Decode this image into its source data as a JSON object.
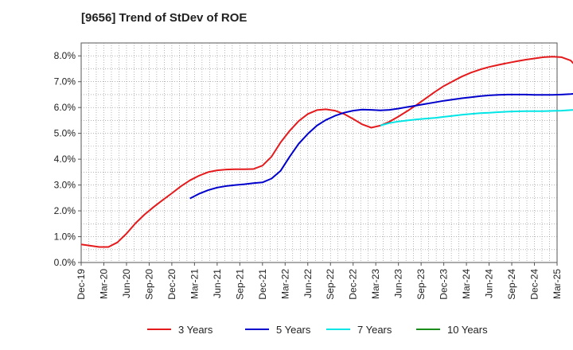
{
  "title": "[9656]  Trend of StDev of ROE",
  "chart_data": {
    "type": "line",
    "title": "[9656]  Trend of StDev of ROE",
    "xlabel": "",
    "ylabel": "",
    "x_ticks": [
      "Dec-19",
      "Mar-20",
      "Jun-20",
      "Sep-20",
      "Dec-20",
      "Mar-21",
      "Jun-21",
      "Sep-21",
      "Dec-21",
      "Mar-22",
      "Jun-22",
      "Sep-22",
      "Dec-22",
      "Mar-23",
      "Jun-23",
      "Sep-23",
      "Dec-23",
      "Mar-24",
      "Jun-24",
      "Sep-24",
      "Dec-24",
      "Mar-25"
    ],
    "y_ticks": [
      "0.0%",
      "1.0%",
      "2.0%",
      "3.0%",
      "4.0%",
      "5.0%",
      "6.0%",
      "7.0%",
      "8.0%"
    ],
    "ylim": [
      0,
      8.5
    ],
    "grid": true,
    "legend_position": "bottom",
    "series": [
      {
        "name": "3 Years",
        "color": "#e41a1c",
        "values": [
          0.7,
          0.65,
          0.6,
          0.6,
          0.78,
          1.12,
          1.52,
          1.86,
          2.15,
          2.42,
          2.68,
          2.95,
          3.18,
          3.36,
          3.5,
          3.57,
          3.6,
          3.61,
          3.61,
          3.62,
          3.75,
          4.1,
          4.65,
          5.1,
          5.48,
          5.75,
          5.9,
          5.93,
          5.88,
          5.75,
          5.56,
          5.35,
          5.22,
          5.3,
          5.45,
          5.65,
          5.87,
          6.1,
          6.35,
          6.6,
          6.83,
          7.02,
          7.2,
          7.35,
          7.47,
          7.57,
          7.65,
          7.72,
          7.79,
          7.85,
          7.9,
          7.95,
          7.97,
          7.95,
          7.82,
          7.45
        ]
      },
      {
        "name": "5 Years",
        "color": "#0000cc",
        "values": [
          null,
          null,
          null,
          null,
          null,
          null,
          null,
          null,
          null,
          null,
          null,
          null,
          2.48,
          2.66,
          2.8,
          2.9,
          2.96,
          3.0,
          3.03,
          3.07,
          3.1,
          3.25,
          3.55,
          4.1,
          4.6,
          4.98,
          5.3,
          5.52,
          5.68,
          5.8,
          5.88,
          5.92,
          5.91,
          5.89,
          5.91,
          5.96,
          6.02,
          6.08,
          6.14,
          6.2,
          6.26,
          6.31,
          6.36,
          6.4,
          6.44,
          6.47,
          6.49,
          6.5,
          6.5,
          6.5,
          6.49,
          6.49,
          6.49,
          6.5,
          6.52,
          6.55
        ]
      },
      {
        "name": "7 Years",
        "color": "#00e5e5",
        "values": [
          null,
          null,
          null,
          null,
          null,
          null,
          null,
          null,
          null,
          null,
          null,
          null,
          null,
          null,
          null,
          null,
          null,
          null,
          null,
          null,
          null,
          null,
          null,
          null,
          null,
          null,
          null,
          null,
          null,
          null,
          null,
          null,
          null,
          5.3,
          5.4,
          5.46,
          5.5,
          5.54,
          5.57,
          5.6,
          5.64,
          5.68,
          5.72,
          5.75,
          5.78,
          5.8,
          5.82,
          5.84,
          5.85,
          5.86,
          5.86,
          5.86,
          5.87,
          5.88,
          5.9,
          5.92
        ]
      },
      {
        "name": "10 Years",
        "color": "#1a8c1a",
        "values": []
      }
    ]
  }
}
